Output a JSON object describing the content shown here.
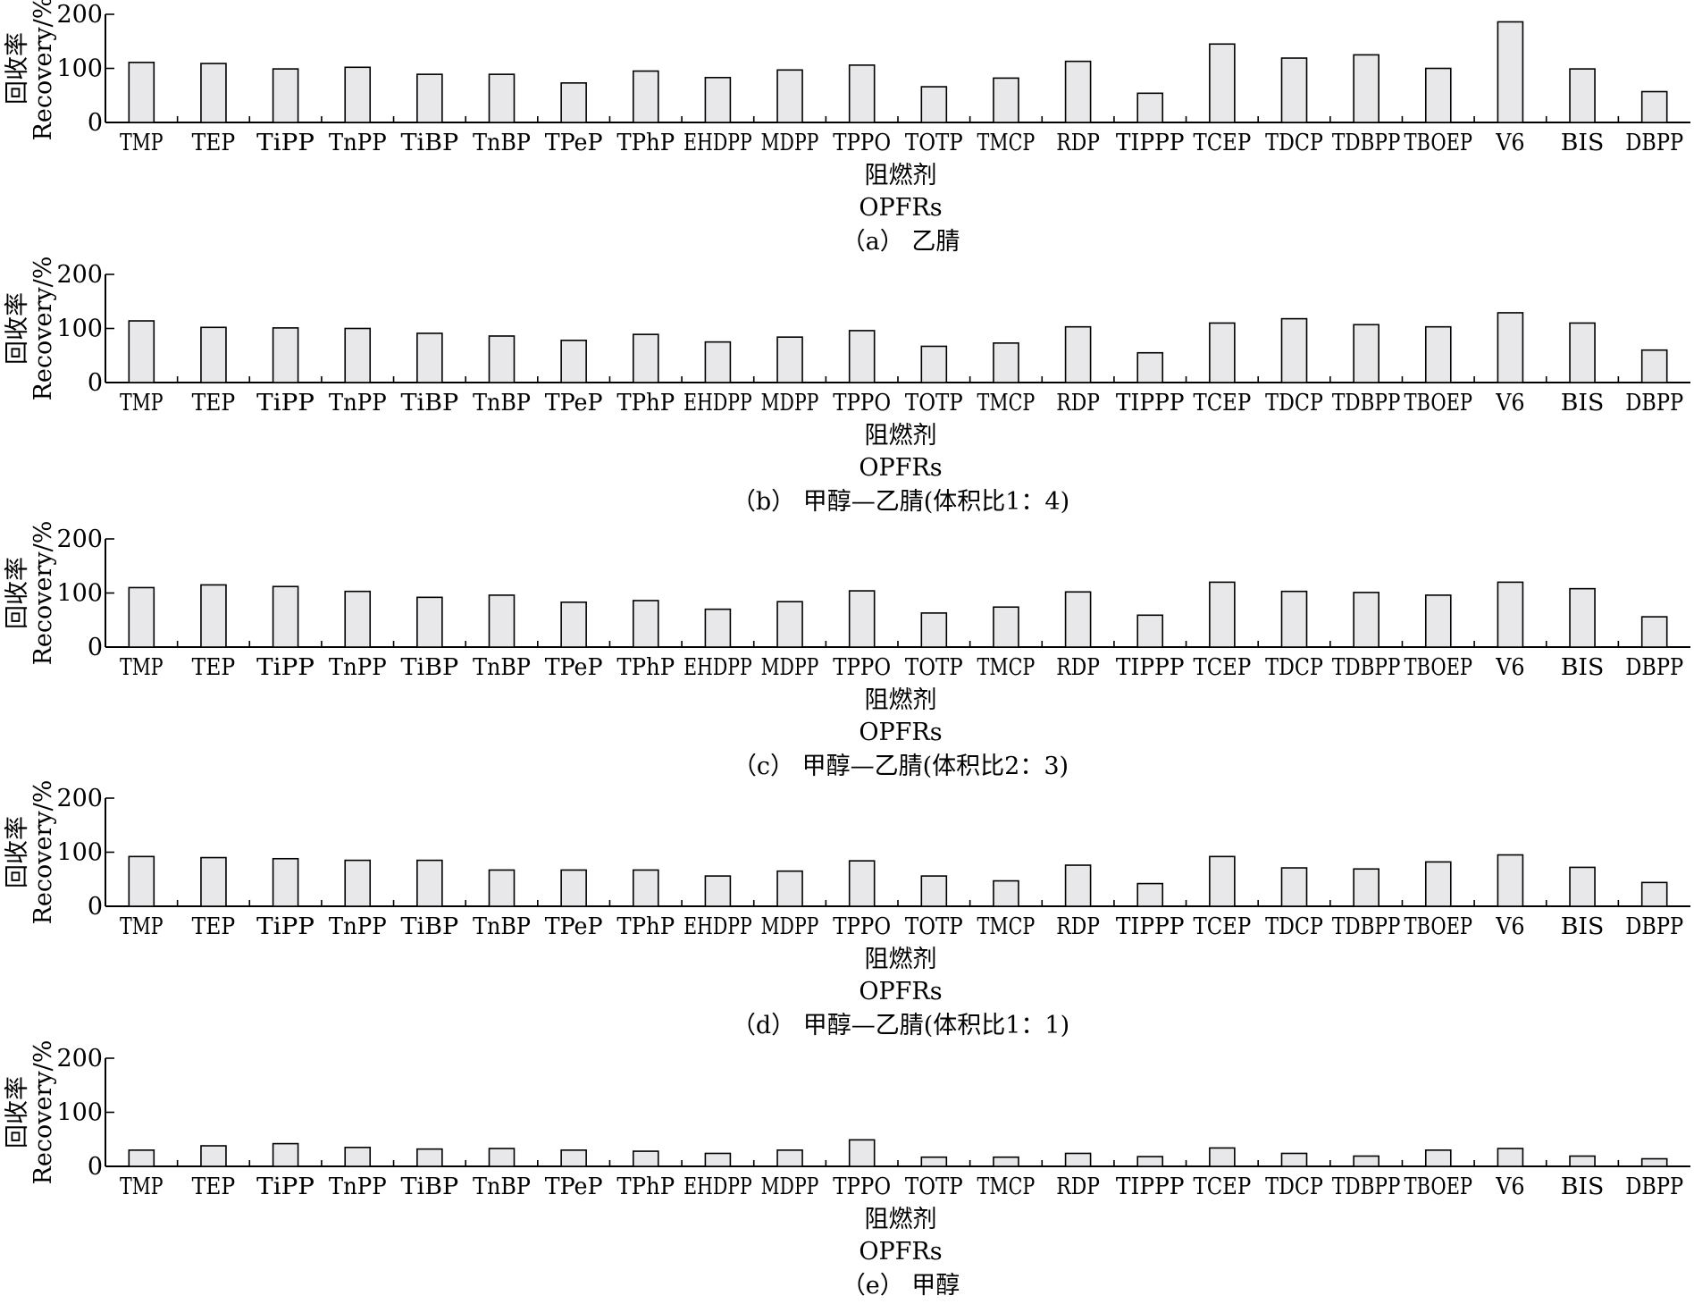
{
  "chart_data": [
    {
      "type": "bar",
      "panel": "a",
      "caption": "（a） 乙腈",
      "ylabel_cn": "回收率",
      "ylabel_en": "Recovery/%",
      "xlabel_cn": "阻燃剂",
      "xlabel_en": "OPFRs",
      "ylim": [
        0,
        200
      ],
      "yticks": [
        "0",
        "100",
        "200"
      ],
      "categories": [
        "TMP",
        "TEP",
        "TiPP",
        "TnPP",
        "TiBP",
        "TnBP",
        "TPeP",
        "TPhP",
        "EHDPP",
        "MDPP",
        "TPPO",
        "TOTP",
        "TMCP",
        "RDP",
        "TIPPP",
        "TCEP",
        "TDCP",
        "TDBPP",
        "TBOEP",
        "V6",
        "BIS",
        "DBPP"
      ],
      "values": [
        111,
        109,
        99,
        102,
        89,
        89,
        73,
        95,
        83,
        97,
        106,
        66,
        82,
        113,
        54,
        145,
        119,
        125,
        100,
        186,
        99,
        57
      ]
    },
    {
      "type": "bar",
      "panel": "b",
      "caption": "（b） 甲醇—乙腈(体积比1：4)",
      "ylabel_cn": "回收率",
      "ylabel_en": "Recovery/%",
      "xlabel_cn": "阻燃剂",
      "xlabel_en": "OPFRs",
      "ylim": [
        0,
        200
      ],
      "yticks": [
        "0",
        "100",
        "200"
      ],
      "categories": [
        "TMP",
        "TEP",
        "TiPP",
        "TnPP",
        "TiBP",
        "TnBP",
        "TPeP",
        "TPhP",
        "EHDPP",
        "MDPP",
        "TPPO",
        "TOTP",
        "TMCP",
        "RDP",
        "TIPPP",
        "TCEP",
        "TDCP",
        "TDBPP",
        "TBOEP",
        "V6",
        "BIS",
        "DBPP"
      ],
      "values": [
        114,
        102,
        101,
        100,
        91,
        86,
        78,
        89,
        75,
        84,
        96,
        67,
        73,
        103,
        55,
        110,
        118,
        107,
        103,
        129,
        110,
        60
      ]
    },
    {
      "type": "bar",
      "panel": "c",
      "caption": "（c） 甲醇—乙腈(体积比2：3)",
      "ylabel_cn": "回收率",
      "ylabel_en": "Recovery/%",
      "xlabel_cn": "阻燃剂",
      "xlabel_en": "OPFRs",
      "ylim": [
        0,
        200
      ],
      "yticks": [
        "0",
        "100",
        "200"
      ],
      "categories": [
        "TMP",
        "TEP",
        "TiPP",
        "TnPP",
        "TiBP",
        "TnBP",
        "TPeP",
        "TPhP",
        "EHDPP",
        "MDPP",
        "TPPO",
        "TOTP",
        "TMCP",
        "RDP",
        "TIPPP",
        "TCEP",
        "TDCP",
        "TDBPP",
        "TBOEP",
        "V6",
        "BIS",
        "DBPP"
      ],
      "values": [
        110,
        115,
        112,
        103,
        92,
        96,
        83,
        86,
        70,
        84,
        104,
        63,
        74,
        102,
        59,
        120,
        103,
        101,
        96,
        120,
        108,
        56
      ]
    },
    {
      "type": "bar",
      "panel": "d",
      "caption": "（d） 甲醇—乙腈(体积比1：1)",
      "ylabel_cn": "回收率",
      "ylabel_en": "Recovery/%",
      "xlabel_cn": "阻燃剂",
      "xlabel_en": "OPFRs",
      "ylim": [
        0,
        200
      ],
      "yticks": [
        "0",
        "100",
        "200"
      ],
      "categories": [
        "TMP",
        "TEP",
        "TiPP",
        "TnPP",
        "TiBP",
        "TnBP",
        "TPeP",
        "TPhP",
        "EHDPP",
        "MDPP",
        "TPPO",
        "TOTP",
        "TMCP",
        "RDP",
        "TIPPP",
        "TCEP",
        "TDCP",
        "TDBPP",
        "TBOEP",
        "V6",
        "BIS",
        "DBPP"
      ],
      "values": [
        92,
        90,
        88,
        85,
        85,
        67,
        67,
        67,
        56,
        65,
        84,
        56,
        47,
        76,
        42,
        92,
        71,
        69,
        82,
        95,
        72,
        44
      ]
    },
    {
      "type": "bar",
      "panel": "e",
      "caption": "（e） 甲醇",
      "ylabel_cn": "回收率",
      "ylabel_en": "Recovery/%",
      "xlabel_cn": "阻燃剂",
      "xlabel_en": "OPFRs",
      "ylim": [
        0,
        200
      ],
      "yticks": [
        "0",
        "100",
        "200"
      ],
      "categories": [
        "TMP",
        "TEP",
        "TiPP",
        "TnPP",
        "TiBP",
        "TnBP",
        "TPeP",
        "TPhP",
        "EHDPP",
        "MDPP",
        "TPPO",
        "TOTP",
        "TMCP",
        "RDP",
        "TIPPP",
        "TCEP",
        "TDCP",
        "TDBPP",
        "TBOEP",
        "V6",
        "BIS",
        "DBPP"
      ],
      "values": [
        30,
        38,
        42,
        35,
        32,
        33,
        30,
        28,
        24,
        30,
        49,
        17,
        17,
        24,
        18,
        34,
        24,
        19,
        30,
        33,
        19,
        14
      ]
    }
  ]
}
